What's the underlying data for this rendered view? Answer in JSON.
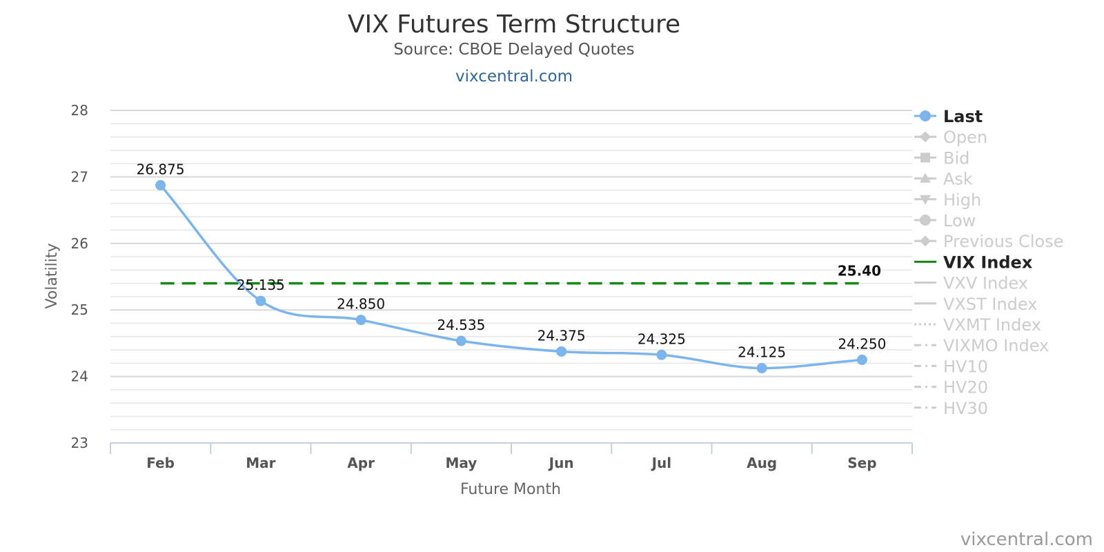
{
  "header": {
    "title": "VIX Futures Term Structure",
    "subtitle": "Source: CBOE Delayed Quotes",
    "link": "vixcentral.com"
  },
  "credit": "vixcentral.com",
  "colors": {
    "last": "#7cb5ec",
    "vix_index": "#138a13",
    "legend_active": "#222222",
    "legend_inactive": "#cccccc",
    "grid": "#dddddd"
  },
  "chart_data": {
    "type": "line",
    "title": "VIX Futures Term Structure",
    "subtitle": "Source: CBOE Delayed Quotes",
    "xlabel": "Future Month",
    "ylabel": "Volatility",
    "categories": [
      "Feb",
      "Mar",
      "Apr",
      "May",
      "Jun",
      "Jul",
      "Aug",
      "Sep"
    ],
    "ylim": [
      23,
      28
    ],
    "yticks": [
      23,
      24,
      25,
      26,
      27,
      28
    ],
    "grid": true,
    "legend_position": "right",
    "series": [
      {
        "name": "Last",
        "values": [
          26.875,
          25.135,
          24.85,
          24.535,
          24.375,
          24.325,
          24.125,
          24.25
        ],
        "labels": [
          "26.875",
          "25.135",
          "24.850",
          "24.535",
          "24.375",
          "24.325",
          "24.125",
          "24.250"
        ],
        "style": "smooth-line-markers",
        "visible": true
      },
      {
        "name": "VIX Index",
        "value": 25.4,
        "label": "25.40",
        "style": "dashed",
        "visible": true
      }
    ],
    "legend": [
      {
        "name": "Last",
        "symbol": "circle",
        "line": "solid",
        "active": true
      },
      {
        "name": "Open",
        "symbol": "diamond",
        "line": "solid",
        "active": false
      },
      {
        "name": "Bid",
        "symbol": "square",
        "line": "solid",
        "active": false
      },
      {
        "name": "Ask",
        "symbol": "triangle",
        "line": "solid",
        "active": false
      },
      {
        "name": "High",
        "symbol": "triangle-down",
        "line": "solid",
        "active": false
      },
      {
        "name": "Low",
        "symbol": "circle",
        "line": "solid",
        "active": false
      },
      {
        "name": "Previous Close",
        "symbol": "diamond",
        "line": "solid",
        "active": false
      },
      {
        "name": "VIX Index",
        "symbol": "none",
        "line": "solid",
        "active": true
      },
      {
        "name": "VXV Index",
        "symbol": "none",
        "line": "solid",
        "active": false
      },
      {
        "name": "VXST Index",
        "symbol": "none",
        "line": "solid",
        "active": false
      },
      {
        "name": "VXMT Index",
        "symbol": "none",
        "line": "dotted",
        "active": false
      },
      {
        "name": "VIXMO Index",
        "symbol": "none",
        "line": "dashdot",
        "active": false
      },
      {
        "name": "HV10",
        "symbol": "none",
        "line": "dashdot",
        "active": false
      },
      {
        "name": "HV20",
        "symbol": "none",
        "line": "dashdot",
        "active": false
      },
      {
        "name": "HV30",
        "symbol": "none",
        "line": "dashdot",
        "active": false
      }
    ]
  }
}
